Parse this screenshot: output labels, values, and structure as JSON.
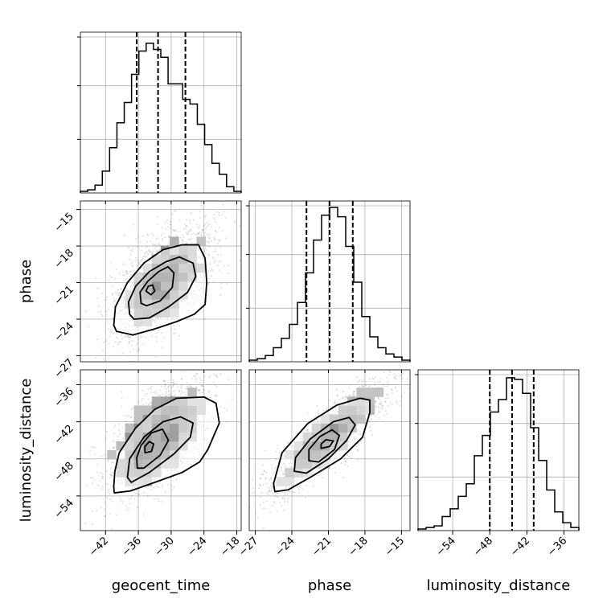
{
  "chart_data": {
    "type": "corner",
    "parameters": [
      "geocent_time",
      "phase",
      "luminosity_distance"
    ],
    "ranges": {
      "geocent_time": [
        -46.6,
        -17.2
      ],
      "phase": [
        -27.5,
        -14.3
      ],
      "luminosity_distance": [
        -59.6,
        -33.6
      ]
    },
    "ticks": {
      "geocent_time": [
        -42,
        -36,
        -30,
        -24,
        -18
      ],
      "phase": [
        -27,
        -24,
        -21,
        -18,
        -15
      ],
      "luminosity_distance": [
        -54,
        -48,
        -42,
        -36
      ]
    },
    "tick_labels": {
      "geocent_time": [
        "−42",
        "−36",
        "−30",
        "−24",
        "−18"
      ],
      "phase": [
        "−27",
        "−24",
        "−21",
        "−18",
        "−15"
      ],
      "luminosity_distance": [
        "−54",
        "−48",
        "−42",
        "−36"
      ]
    },
    "quantiles": {
      "geocent_time": [
        -36.3,
        -32.4,
        -27.4
      ],
      "phase": [
        -22.8,
        -20.9,
        -19.0
      ],
      "luminosity_distance": [
        -48.0,
        -44.4,
        -40.9
      ]
    },
    "histograms": {
      "geocent_time": [
        0.01,
        0.02,
        0.05,
        0.14,
        0.29,
        0.45,
        0.58,
        0.76,
        0.91,
        0.96,
        0.92,
        0.87,
        0.7,
        0.7,
        0.6,
        0.57,
        0.44,
        0.31,
        0.19,
        0.12,
        0.04,
        0.01
      ],
      "phase": [
        0.01,
        0.02,
        0.04,
        0.09,
        0.15,
        0.24,
        0.38,
        0.57,
        0.78,
        0.94,
        0.99,
        0.93,
        0.74,
        0.51,
        0.29,
        0.16,
        0.09,
        0.05,
        0.03,
        0.01
      ],
      "luminosity_distance": [
        0.01,
        0.02,
        0.03,
        0.09,
        0.14,
        0.22,
        0.3,
        0.48,
        0.61,
        0.76,
        0.84,
        0.98,
        0.97,
        0.88,
        0.66,
        0.45,
        0.26,
        0.12,
        0.05,
        0.02
      ]
    },
    "scatter": {
      "phase_vs_geocent_time": {
        "mean": [
          -31.5,
          -21.0
        ],
        "std": [
          4.5,
          2.3
        ],
        "rho": 0.6,
        "contours": [
          [
            [
              -40.5,
              -24.5
            ],
            [
              -40.0,
              -25.0
            ],
            [
              -37.0,
              -25.3
            ],
            [
              -33.0,
              -24.8
            ],
            [
              -29.0,
              -24.2
            ],
            [
              -25.8,
              -23.6
            ],
            [
              -23.8,
              -22.8
            ],
            [
              -23.5,
              -21.0
            ],
            [
              -23.8,
              -19.0
            ],
            [
              -25.0,
              -17.9
            ],
            [
              -28.0,
              -17.9
            ],
            [
              -31.5,
              -18.3
            ],
            [
              -35.0,
              -19.4
            ],
            [
              -38.0,
              -21.0
            ],
            [
              -40.2,
              -23.0
            ]
          ],
          [
            [
              -37.6,
              -23.6
            ],
            [
              -36.8,
              -24.0
            ],
            [
              -34.0,
              -23.9
            ],
            [
              -30.5,
              -23.0
            ],
            [
              -27.0,
              -21.8
            ],
            [
              -25.5,
              -20.5
            ],
            [
              -26.0,
              -19.4
            ],
            [
              -28.5,
              -18.9
            ],
            [
              -31.0,
              -19.3
            ],
            [
              -34.0,
              -20.1
            ],
            [
              -36.5,
              -21.3
            ],
            [
              -37.8,
              -22.6
            ]
          ],
          [
            [
              -35.5,
              -22.7
            ],
            [
              -34.5,
              -22.9
            ],
            [
              -32.0,
              -22.5
            ],
            [
              -29.8,
              -21.4
            ],
            [
              -29.5,
              -20.2
            ],
            [
              -30.6,
              -19.7
            ],
            [
              -32.3,
              -20.1
            ],
            [
              -34.3,
              -20.9
            ],
            [
              -35.7,
              -21.8
            ]
          ],
          [
            [
              -34.6,
              -21.7
            ],
            [
              -33.7,
              -22.0
            ],
            [
              -33.0,
              -21.7
            ],
            [
              -33.4,
              -21.2
            ],
            [
              -34.2,
              -21.3
            ]
          ]
        ]
      },
      "luminosity_distance_vs_geocent_time": {
        "mean": [
          -32.2,
          -44.5
        ],
        "std": [
          4.5,
          4.4
        ],
        "rho": 0.6,
        "contours": [
          [
            [
              -40.5,
              -52.5
            ],
            [
              -40.4,
              -53.5
            ],
            [
              -37.5,
              -53.2
            ],
            [
              -33.0,
              -51.8
            ],
            [
              -28.0,
              -50.2
            ],
            [
              -24.8,
              -48.5
            ],
            [
              -23.3,
              -46.5
            ],
            [
              -21.2,
              -42.2
            ],
            [
              -21.8,
              -39.0
            ],
            [
              -24.0,
              -38.0
            ],
            [
              -29.0,
              -38.2
            ],
            [
              -33.0,
              -40.0
            ],
            [
              -36.5,
              -43.0
            ],
            [
              -39.5,
              -47.0
            ],
            [
              -40.3,
              -50.0
            ]
          ],
          [
            [
              -38.0,
              -51.0
            ],
            [
              -37.3,
              -51.8
            ],
            [
              -34.0,
              -50.2
            ],
            [
              -29.5,
              -47.2
            ],
            [
              -26.5,
              -44.5
            ],
            [
              -26.0,
              -42.2
            ],
            [
              -28.3,
              -41.2
            ],
            [
              -31.5,
              -42.0
            ],
            [
              -35.0,
              -44.5
            ],
            [
              -37.6,
              -48.0
            ]
          ],
          [
            [
              -36.2,
              -49.5
            ],
            [
              -35.0,
              -49.5
            ],
            [
              -32.0,
              -47.4
            ],
            [
              -30.5,
              -45.0
            ],
            [
              -31.6,
              -43.2
            ],
            [
              -33.6,
              -43.8
            ],
            [
              -35.5,
              -45.8
            ],
            [
              -36.3,
              -47.8
            ]
          ],
          [
            [
              -34.8,
              -47.0
            ],
            [
              -33.6,
              -46.8
            ],
            [
              -33.2,
              -45.6
            ],
            [
              -34.0,
              -45.2
            ],
            [
              -34.8,
              -46.0
            ]
          ]
        ]
      },
      "luminosity_distance_vs_phase": {
        "mean": [
          -21.0,
          -44.5
        ],
        "std": [
          2.3,
          4.4
        ],
        "rho": 0.85,
        "contours": [
          [
            [
              -25.5,
              -52.0
            ],
            [
              -25.4,
              -53.3
            ],
            [
              -24.3,
              -53.0
            ],
            [
              -22.5,
              -51.0
            ],
            [
              -20.0,
              -48.0
            ],
            [
              -18.2,
              -44.5
            ],
            [
              -17.6,
              -40.5
            ],
            [
              -17.6,
              -38.5
            ],
            [
              -18.4,
              -38.2
            ],
            [
              -20.3,
              -39.3
            ],
            [
              -22.7,
              -42.3
            ],
            [
              -24.8,
              -47.0
            ]
          ],
          [
            [
              -23.8,
              -50.0
            ],
            [
              -22.8,
              -50.3
            ],
            [
              -21.0,
              -48.0
            ],
            [
              -19.5,
              -45.0
            ],
            [
              -18.8,
              -42.5
            ],
            [
              -19.3,
              -41.3
            ],
            [
              -20.6,
              -42.0
            ],
            [
              -22.5,
              -44.8
            ],
            [
              -23.7,
              -47.8
            ]
          ],
          [
            [
              -22.6,
              -48.3
            ],
            [
              -21.8,
              -48.5
            ],
            [
              -20.5,
              -46.5
            ],
            [
              -20.1,
              -44.2
            ],
            [
              -20.7,
              -43.3
            ],
            [
              -21.7,
              -44.4
            ],
            [
              -22.6,
              -46.5
            ]
          ],
          [
            [
              -21.6,
              -46.3
            ],
            [
              -20.9,
              -46.0
            ],
            [
              -20.6,
              -45.1
            ],
            [
              -21.2,
              -44.9
            ],
            [
              -21.6,
              -45.6
            ]
          ]
        ]
      }
    },
    "xlabels": [
      "geocent_time",
      "phase",
      "luminosity_distance"
    ],
    "ylabels": [
      "",
      "phase",
      "luminosity_distance"
    ],
    "grid": true
  }
}
